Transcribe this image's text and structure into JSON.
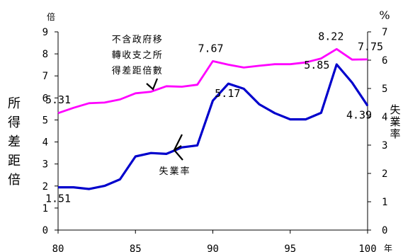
{
  "chart_data": {
    "type": "line",
    "x": [
      80,
      81,
      82,
      83,
      84,
      85,
      86,
      87,
      88,
      89,
      90,
      91,
      92,
      93,
      94,
      95,
      96,
      97,
      98,
      99,
      100
    ],
    "x_ticks": [
      80,
      85,
      90,
      95,
      100
    ],
    "x_unit": "年",
    "left_axis": {
      "label": "所得差距倍",
      "unit": "倍",
      "range": [
        0,
        9
      ],
      "ticks": [
        0,
        1,
        2,
        3,
        4,
        5,
        6,
        7,
        8,
        9
      ]
    },
    "right_axis": {
      "label": "失業率",
      "unit": "%",
      "range": [
        0,
        7
      ],
      "ticks": [
        0,
        1,
        2,
        3,
        4,
        5,
        6,
        7
      ]
    },
    "series": [
      {
        "name": "不含政府移轉收支之所得差距倍數",
        "color": "#ff00ff",
        "axis": "left",
        "values": [
          5.31,
          5.55,
          5.76,
          5.79,
          5.93,
          6.21,
          6.28,
          6.53,
          6.51,
          6.6,
          7.67,
          7.51,
          7.38,
          7.46,
          7.53,
          7.53,
          7.61,
          7.79,
          8.22,
          7.74,
          7.75
        ]
      },
      {
        "name": "失業率",
        "color": "#0000cc",
        "axis": "right",
        "values": [
          1.51,
          1.51,
          1.45,
          1.56,
          1.79,
          2.6,
          2.72,
          2.69,
          2.92,
          2.99,
          4.57,
          5.17,
          4.99,
          4.44,
          4.13,
          3.91,
          3.91,
          4.14,
          5.85,
          5.21,
          4.39
        ]
      }
    ],
    "data_labels": [
      {
        "series": 0,
        "index": 0,
        "text": "5.31"
      },
      {
        "series": 0,
        "index": 10,
        "text": "7.67"
      },
      {
        "series": 0,
        "index": 18,
        "text": "8.22"
      },
      {
        "series": 0,
        "index": 20,
        "text": "7.75"
      },
      {
        "series": 1,
        "index": 0,
        "text": "1.51"
      },
      {
        "series": 1,
        "index": 11,
        "text": "5.17"
      },
      {
        "series": 1,
        "index": 18,
        "text": "5.85"
      },
      {
        "series": 1,
        "index": 20,
        "text": "4.39"
      }
    ],
    "annotations": {
      "income_gap_lines": [
        "不含政府移",
        "轉收支之所",
        "得差距倍數"
      ],
      "unemployment": "失業率"
    },
    "grid": false
  }
}
